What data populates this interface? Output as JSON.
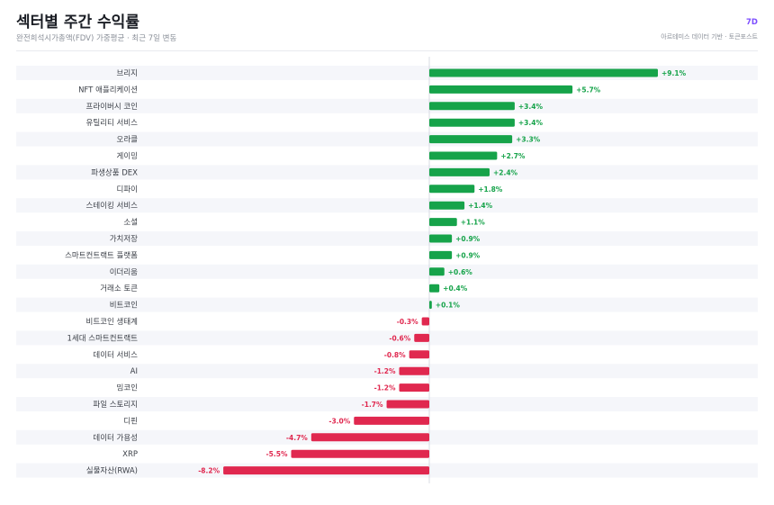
{
  "header": {
    "title": "섹터별 주간 수익률",
    "subtitle": "완전희석시가총액(FDV) 가중평균 · 최근 7일 변동",
    "period_badge": "7D",
    "source": "아르테미스 데이터 기반 · 토큰포스트"
  },
  "colors": {
    "positive": "#16a34a",
    "negative": "#e0284f",
    "row_alt": "#f5f6fa",
    "zero_line": "#d0d4dc"
  },
  "chart_data": {
    "type": "bar",
    "orientation": "horizontal",
    "unit": "%",
    "grid": false,
    "legend": "none",
    "xlim": [
      -8.2,
      9.1
    ],
    "categories": [
      "브리지",
      "NFT 애플리케이션",
      "프라이버시 코인",
      "유틸리티 서비스",
      "오라클",
      "게이밍",
      "파생상품 DEX",
      "디파이",
      "스테이킹 서비스",
      "소셜",
      "가치저장",
      "스마트컨트랙트 플랫폼",
      "이더리움",
      "거래소 토큰",
      "비트코인",
      "비트코인 생태계",
      "1세대 스마트컨트랙트",
      "데이터 서비스",
      "AI",
      "밈코인",
      "파일 스토리지",
      "디핀",
      "데이터 가용성",
      "XRP",
      "실물자산(RWA)"
    ],
    "values": [
      9.1,
      5.7,
      3.4,
      3.4,
      3.3,
      2.7,
      2.4,
      1.8,
      1.4,
      1.1,
      0.9,
      0.9,
      0.6,
      0.4,
      0.1,
      -0.3,
      -0.6,
      -0.8,
      -1.2,
      -1.2,
      -1.7,
      -3.0,
      -4.7,
      -5.5,
      -8.2
    ],
    "value_labels": [
      "+9.1%",
      "+5.7%",
      "+3.4%",
      "+3.4%",
      "+3.3%",
      "+2.7%",
      "+2.4%",
      "+1.8%",
      "+1.4%",
      "+1.1%",
      "+0.9%",
      "+0.9%",
      "+0.6%",
      "+0.4%",
      "+0.1%",
      "-0.3%",
      "-0.6%",
      "-0.8%",
      "-1.2%",
      "-1.2%",
      "-1.7%",
      "-3.0%",
      "-4.7%",
      "-5.5%",
      "-8.2%"
    ]
  }
}
